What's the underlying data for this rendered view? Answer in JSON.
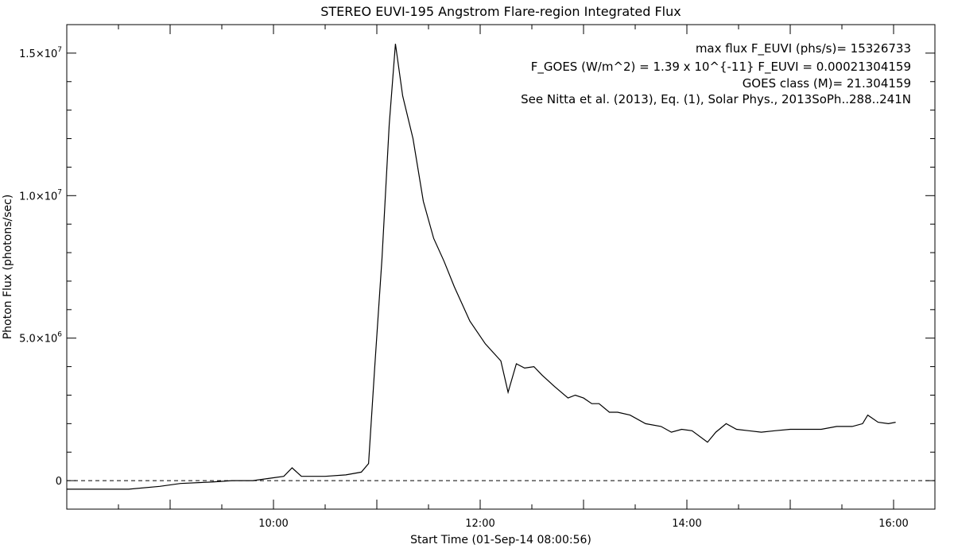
{
  "chart_data": {
    "type": "line",
    "title": "STEREO EUVI-195 Angstrom Flare-region Integrated Flux",
    "xlabel": "Start Time (01-Sep-14 08:00:56)",
    "ylabel": "Photon Flux (photons/sec)",
    "xlim": [
      8.0,
      16.4
    ],
    "ylim": [
      -1000000,
      16000000
    ],
    "grid": false,
    "x_ticks": [
      {
        "value": 10,
        "label": "10:00"
      },
      {
        "value": 12,
        "label": "12:00"
      },
      {
        "value": 14,
        "label": "14:00"
      },
      {
        "value": 16,
        "label": "16:00"
      }
    ],
    "y_ticks": [
      {
        "value": 0,
        "label": "0"
      },
      {
        "value": 5000000,
        "label": "5.0×10",
        "exp": "6"
      },
      {
        "value": 10000000,
        "label": "1.0×10",
        "exp": "7"
      },
      {
        "value": 15000000,
        "label": "1.5×10",
        "exp": "7"
      }
    ],
    "reference_line": {
      "y": 0,
      "style": "dashed"
    },
    "annotations": [
      "max flux F_EUVI (phs/s)= 15326733",
      "F_GOES (W/m^2) = 1.39 x 10^{-11} F_EUVI = 0.00021304159",
      "GOES class (M)= 21.304159",
      "See Nitta et al. (2013), Eq. (1), Solar Phys., 2013SoPh..288..241N"
    ],
    "series": [
      {
        "x": [
          8.0,
          8.3,
          8.6,
          8.9,
          9.1,
          9.4,
          9.6,
          9.8,
          10.0,
          10.1,
          10.18,
          10.27,
          10.5,
          10.7,
          10.85,
          10.92,
          10.98,
          11.05,
          11.12,
          11.18,
          11.25,
          11.35,
          11.45,
          11.55,
          11.65,
          11.75,
          11.9,
          12.05,
          12.2,
          12.27,
          12.35,
          12.43,
          12.52,
          12.6,
          12.72,
          12.85,
          12.92,
          13.0,
          13.08,
          13.15,
          13.25,
          13.33,
          13.45,
          13.6,
          13.75,
          13.85,
          13.95,
          14.05,
          14.2,
          14.28,
          14.38,
          14.48,
          14.6,
          14.72,
          14.85,
          15.0,
          15.15,
          15.3,
          15.45,
          15.6,
          15.7,
          15.75,
          15.85,
          15.95,
          16.02
        ],
        "y": [
          -300000,
          -300000,
          -300000,
          -200000,
          -100000,
          -50000,
          0,
          0,
          100000,
          150000,
          450000,
          150000,
          150000,
          200000,
          300000,
          600000,
          4000000,
          7800000,
          12500000,
          15326733,
          13500000,
          12000000,
          9800000,
          8500000,
          7700000,
          6800000,
          5600000,
          4800000,
          4200000,
          3100000,
          4100000,
          3950000,
          4000000,
          3700000,
          3300000,
          2900000,
          3000000,
          2900000,
          2700000,
          2700000,
          2400000,
          2400000,
          2300000,
          2000000,
          1900000,
          1700000,
          1800000,
          1750000,
          1350000,
          1700000,
          2000000,
          1800000,
          1750000,
          1700000,
          1750000,
          1800000,
          1800000,
          1800000,
          1900000,
          1900000,
          2000000,
          2300000,
          2050000,
          2000000,
          2050000
        ]
      }
    ]
  }
}
